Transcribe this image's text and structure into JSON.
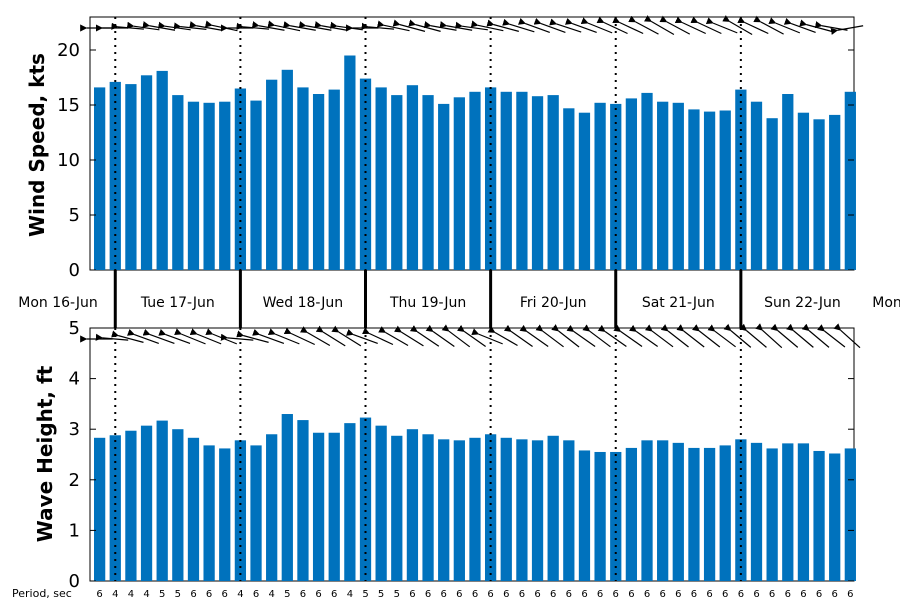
{
  "chart_data": [
    {
      "type": "bar",
      "ylabel": "Wind Speed, kts",
      "ylim": [
        0,
        23
      ],
      "yticks": [
        0,
        5,
        10,
        15,
        20
      ],
      "bar_color": "#0072BD",
      "values": [
        16.6,
        17.1,
        16.9,
        17.7,
        18.1,
        15.9,
        15.3,
        15.2,
        15.3,
        16.5,
        15.4,
        17.3,
        18.2,
        16.6,
        16.0,
        16.4,
        19.5,
        17.4,
        16.6,
        15.9,
        16.8,
        15.9,
        15.1,
        15.7,
        16.2,
        16.6,
        16.2,
        16.2,
        15.8,
        15.9,
        14.7,
        14.3,
        15.2,
        15.1,
        15.6,
        16.1,
        15.3,
        15.2,
        14.6,
        14.4,
        14.5,
        16.4,
        15.3,
        13.8,
        16.0,
        14.3,
        13.7,
        14.1,
        16.2
      ],
      "direction_arrows": "pointing toward upper-left to left, one per bar",
      "grid": false
    },
    {
      "type": "bar",
      "ylabel": "Wave Height, ft",
      "ylim": [
        0,
        5
      ],
      "yticks": [
        0,
        1,
        2,
        3,
        4,
        5
      ],
      "bar_color": "#0072BD",
      "values": [
        2.83,
        2.88,
        2.97,
        3.07,
        3.17,
        3.0,
        2.83,
        2.68,
        2.62,
        2.78,
        2.68,
        2.9,
        3.3,
        3.18,
        2.93,
        2.93,
        3.12,
        3.23,
        3.07,
        2.87,
        3.0,
        2.9,
        2.8,
        2.78,
        2.83,
        2.9,
        2.83,
        2.8,
        2.78,
        2.87,
        2.78,
        2.58,
        2.55,
        2.55,
        2.63,
        2.78,
        2.78,
        2.73,
        2.63,
        2.63,
        2.68,
        2.8,
        2.73,
        2.62,
        2.72,
        2.72,
        2.57,
        2.52,
        2.62
      ],
      "direction_arrows": "pointing toward upper-left, one per bar",
      "grid": false
    }
  ],
  "day_labels": [
    "Mon 16-Jun",
    "Tue 17-Jun",
    "Wed 18-Jun",
    "Thu 19-Jun",
    "Fri 20-Jun",
    "Sat 21-Jun",
    "Sun 22-Jun",
    "Mon"
  ],
  "day_starts": [
    1,
    9,
    17,
    25,
    33,
    41
  ],
  "period_label": "Period, sec",
  "periods": [
    "6",
    "4",
    "4",
    "4",
    "5",
    "5",
    "6",
    "6",
    "6",
    "4",
    "6",
    "4",
    "5",
    "6",
    "6",
    "6",
    "4",
    "5",
    "5",
    "5",
    "6",
    "6",
    "6",
    "6",
    "6",
    "6",
    "6",
    "6",
    "6",
    "6",
    "6",
    "6",
    "6",
    "6",
    "6",
    "6",
    "6",
    "6",
    "6",
    "6",
    "6",
    "6",
    "6",
    "6",
    "6",
    "6",
    "6",
    "6",
    "6"
  ],
  "wind_arrow_angles_deg": [
    180,
    180,
    175,
    172,
    170,
    172,
    174,
    170,
    168,
    180,
    175,
    170,
    168,
    170,
    170,
    170,
    172,
    180,
    175,
    168,
    165,
    165,
    170,
    170,
    172,
    168,
    165,
    163,
    160,
    160,
    162,
    160,
    158,
    155,
    155,
    152,
    150,
    152,
    155,
    155,
    158,
    150,
    155,
    152,
    158,
    160,
    165,
    170,
    190
  ],
  "wave_arrow_angles_deg": [
    180,
    175,
    165,
    160,
    160,
    160,
    158,
    158,
    158,
    175,
    165,
    160,
    158,
    155,
    150,
    148,
    148,
    160,
    155,
    150,
    148,
    146,
    145,
    143,
    145,
    158,
    150,
    145,
    145,
    143,
    142,
    145,
    143,
    145,
    145,
    145,
    143,
    142,
    142,
    142,
    143,
    140,
    140,
    138,
    140,
    140,
    140,
    142,
    138
  ]
}
